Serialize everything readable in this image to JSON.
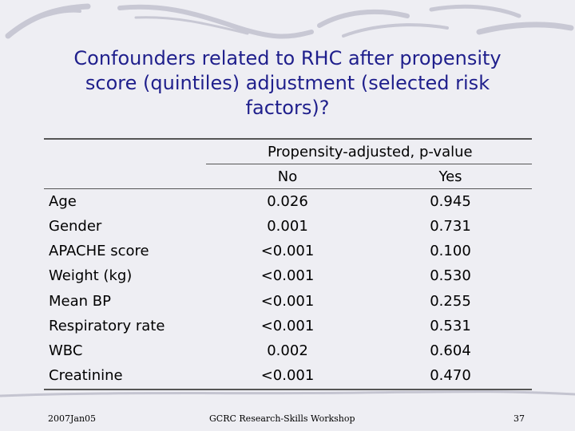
{
  "slide": {
    "title_lines": [
      "Confounders related to RHC after propensity",
      "score (quintiles) adjustment (selected risk",
      "factors)?"
    ]
  },
  "table": {
    "group_header": "Propensity-adjusted, p-value",
    "col_no": "No",
    "col_yes": "Yes",
    "rows": [
      {
        "label": "Age",
        "no": "0.026",
        "yes": "0.945"
      },
      {
        "label": "Gender",
        "no": "0.001",
        "yes": "0.731"
      },
      {
        "label": "APACHE score",
        "no": "<0.001",
        "yes": "0.100"
      },
      {
        "label": "Weight (kg)",
        "no": "<0.001",
        "yes": "0.530"
      },
      {
        "label": "Mean BP",
        "no": "<0.001",
        "yes": "0.255"
      },
      {
        "label": "Respiratory rate",
        "no": "<0.001",
        "yes": "0.531"
      },
      {
        "label": "WBC",
        "no": "0.002",
        "yes": "0.604"
      },
      {
        "label": "Creatinine",
        "no": "<0.001",
        "yes": "0.470"
      }
    ]
  },
  "footer": {
    "date": "2007Jan05",
    "center": "GCRC Research-Skills Workshop",
    "page": "37"
  }
}
